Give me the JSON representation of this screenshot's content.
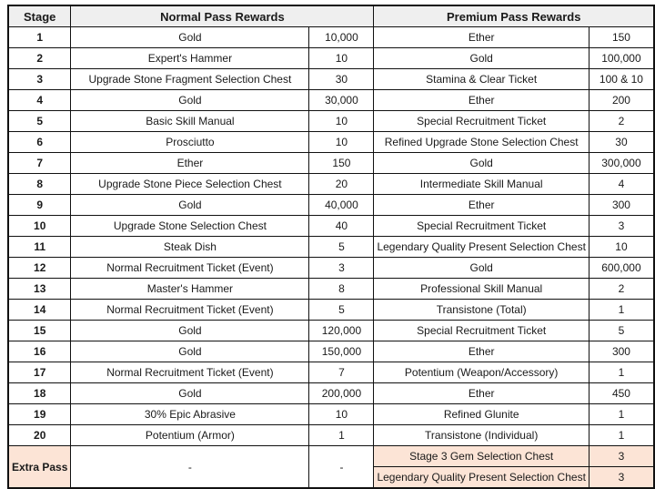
{
  "table": {
    "headers": {
      "stage": "Stage",
      "normal": "Normal Pass Rewards",
      "premium": "Premium Pass Rewards"
    },
    "colors": {
      "header_bg": "#efefef",
      "extra_row_bg": "#fce4d6",
      "border": "#111111"
    },
    "rows": [
      {
        "stage": "1",
        "normal_item": "Gold",
        "normal_qty": "10,000",
        "premium_item": "Ether",
        "premium_qty": "150"
      },
      {
        "stage": "2",
        "normal_item": "Expert's Hammer",
        "normal_qty": "10",
        "premium_item": "Gold",
        "premium_qty": "100,000"
      },
      {
        "stage": "3",
        "normal_item": "Upgrade Stone Fragment Selection Chest",
        "normal_qty": "30",
        "premium_item": "Stamina & Clear Ticket",
        "premium_qty": "100 & 10"
      },
      {
        "stage": "4",
        "normal_item": "Gold",
        "normal_qty": "30,000",
        "premium_item": "Ether",
        "premium_qty": "200"
      },
      {
        "stage": "5",
        "normal_item": "Basic Skill Manual",
        "normal_qty": "10",
        "premium_item": "Special Recruitment Ticket",
        "premium_qty": "2"
      },
      {
        "stage": "6",
        "normal_item": "Prosciutto",
        "normal_qty": "10",
        "premium_item": "Refined Upgrade Stone Selection Chest",
        "premium_qty": "30"
      },
      {
        "stage": "7",
        "normal_item": "Ether",
        "normal_qty": "150",
        "premium_item": "Gold",
        "premium_qty": "300,000"
      },
      {
        "stage": "8",
        "normal_item": "Upgrade Stone Piece Selection Chest",
        "normal_qty": "20",
        "premium_item": "Intermediate Skill Manual",
        "premium_qty": "4"
      },
      {
        "stage": "9",
        "normal_item": "Gold",
        "normal_qty": "40,000",
        "premium_item": "Ether",
        "premium_qty": "300"
      },
      {
        "stage": "10",
        "normal_item": "Upgrade Stone Selection Chest",
        "normal_qty": "40",
        "premium_item": "Special Recruitment Ticket",
        "premium_qty": "3"
      },
      {
        "stage": "11",
        "normal_item": "Steak Dish",
        "normal_qty": "5",
        "premium_item": "Legendary Quality Present Selection Chest",
        "premium_qty": "10"
      },
      {
        "stage": "12",
        "normal_item": "Normal Recruitment Ticket (Event)",
        "normal_qty": "3",
        "premium_item": "Gold",
        "premium_qty": "600,000"
      },
      {
        "stage": "13",
        "normal_item": "Master's Hammer",
        "normal_qty": "8",
        "premium_item": "Professional Skill Manual",
        "premium_qty": "2"
      },
      {
        "stage": "14",
        "normal_item": "Normal Recruitment Ticket (Event)",
        "normal_qty": "5",
        "premium_item": "Transistone (Total)",
        "premium_qty": "1"
      },
      {
        "stage": "15",
        "normal_item": "Gold",
        "normal_qty": "120,000",
        "premium_item": "Special Recruitment Ticket",
        "premium_qty": "5"
      },
      {
        "stage": "16",
        "normal_item": "Gold",
        "normal_qty": "150,000",
        "premium_item": "Ether",
        "premium_qty": "300"
      },
      {
        "stage": "17",
        "normal_item": "Normal Recruitment Ticket (Event)",
        "normal_qty": "7",
        "premium_item": "Potentium (Weapon/Accessory)",
        "premium_qty": "1"
      },
      {
        "stage": "18",
        "normal_item": "Gold",
        "normal_qty": "200,000",
        "premium_item": "Ether",
        "premium_qty": "450"
      },
      {
        "stage": "19",
        "normal_item": "30% Epic Abrasive",
        "normal_qty": "10",
        "premium_item": "Refined Glunite",
        "premium_qty": "1"
      },
      {
        "stage": "20",
        "normal_item": "Potentium (Armor)",
        "normal_qty": "1",
        "premium_item": "Transistone (Individual)",
        "premium_qty": "1"
      }
    ],
    "extra": {
      "stage": "Extra Pass",
      "normal_item": "-",
      "normal_qty": "-",
      "premium": [
        {
          "item": "Stage 3 Gem Selection Chest",
          "qty": "3"
        },
        {
          "item": "Legendary Quality Present Selection Chest",
          "qty": "3"
        }
      ]
    }
  }
}
